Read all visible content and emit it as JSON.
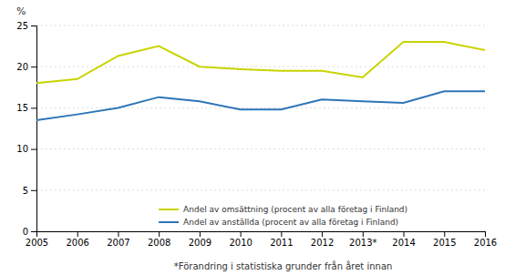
{
  "chart_data": {
    "type": "line",
    "y_label": "%",
    "annotations": [
      "*Förandring i statistiska grunder från året innan"
    ],
    "x": [
      2005,
      2006,
      2007,
      2008,
      2009,
      2010,
      2011,
      2012,
      2013,
      2014,
      2015,
      2016
    ],
    "xlim": [
      2005,
      2016
    ],
    "xticks": [
      2005,
      2006,
      2007,
      2008,
      2009,
      2010,
      2011,
      2012,
      {
        "value": 2013,
        "label": "2013*"
      },
      2014,
      2015,
      2016
    ],
    "ylim": [
      0,
      25
    ],
    "yticks": [
      0,
      5,
      10,
      15,
      20,
      25
    ],
    "grid": true,
    "legend": "bottom",
    "series": [
      {
        "name": "Andel av omsättning (procent av alla företag i Finland)",
        "color": "#c8d400",
        "values": [
          18.0,
          18.5,
          21.3,
          22.5,
          20.0,
          19.7,
          19.5,
          19.5,
          18.7,
          23.0,
          23.0,
          22.0
        ]
      },
      {
        "name": "Andel av anställda (procent av alla företag i Finland)",
        "color": "#2e75b6",
        "values": [
          13.5,
          14.2,
          15.0,
          16.3,
          15.8,
          14.8,
          14.8,
          16.0,
          15.8,
          15.6,
          17.0,
          17.0
        ]
      }
    ]
  }
}
